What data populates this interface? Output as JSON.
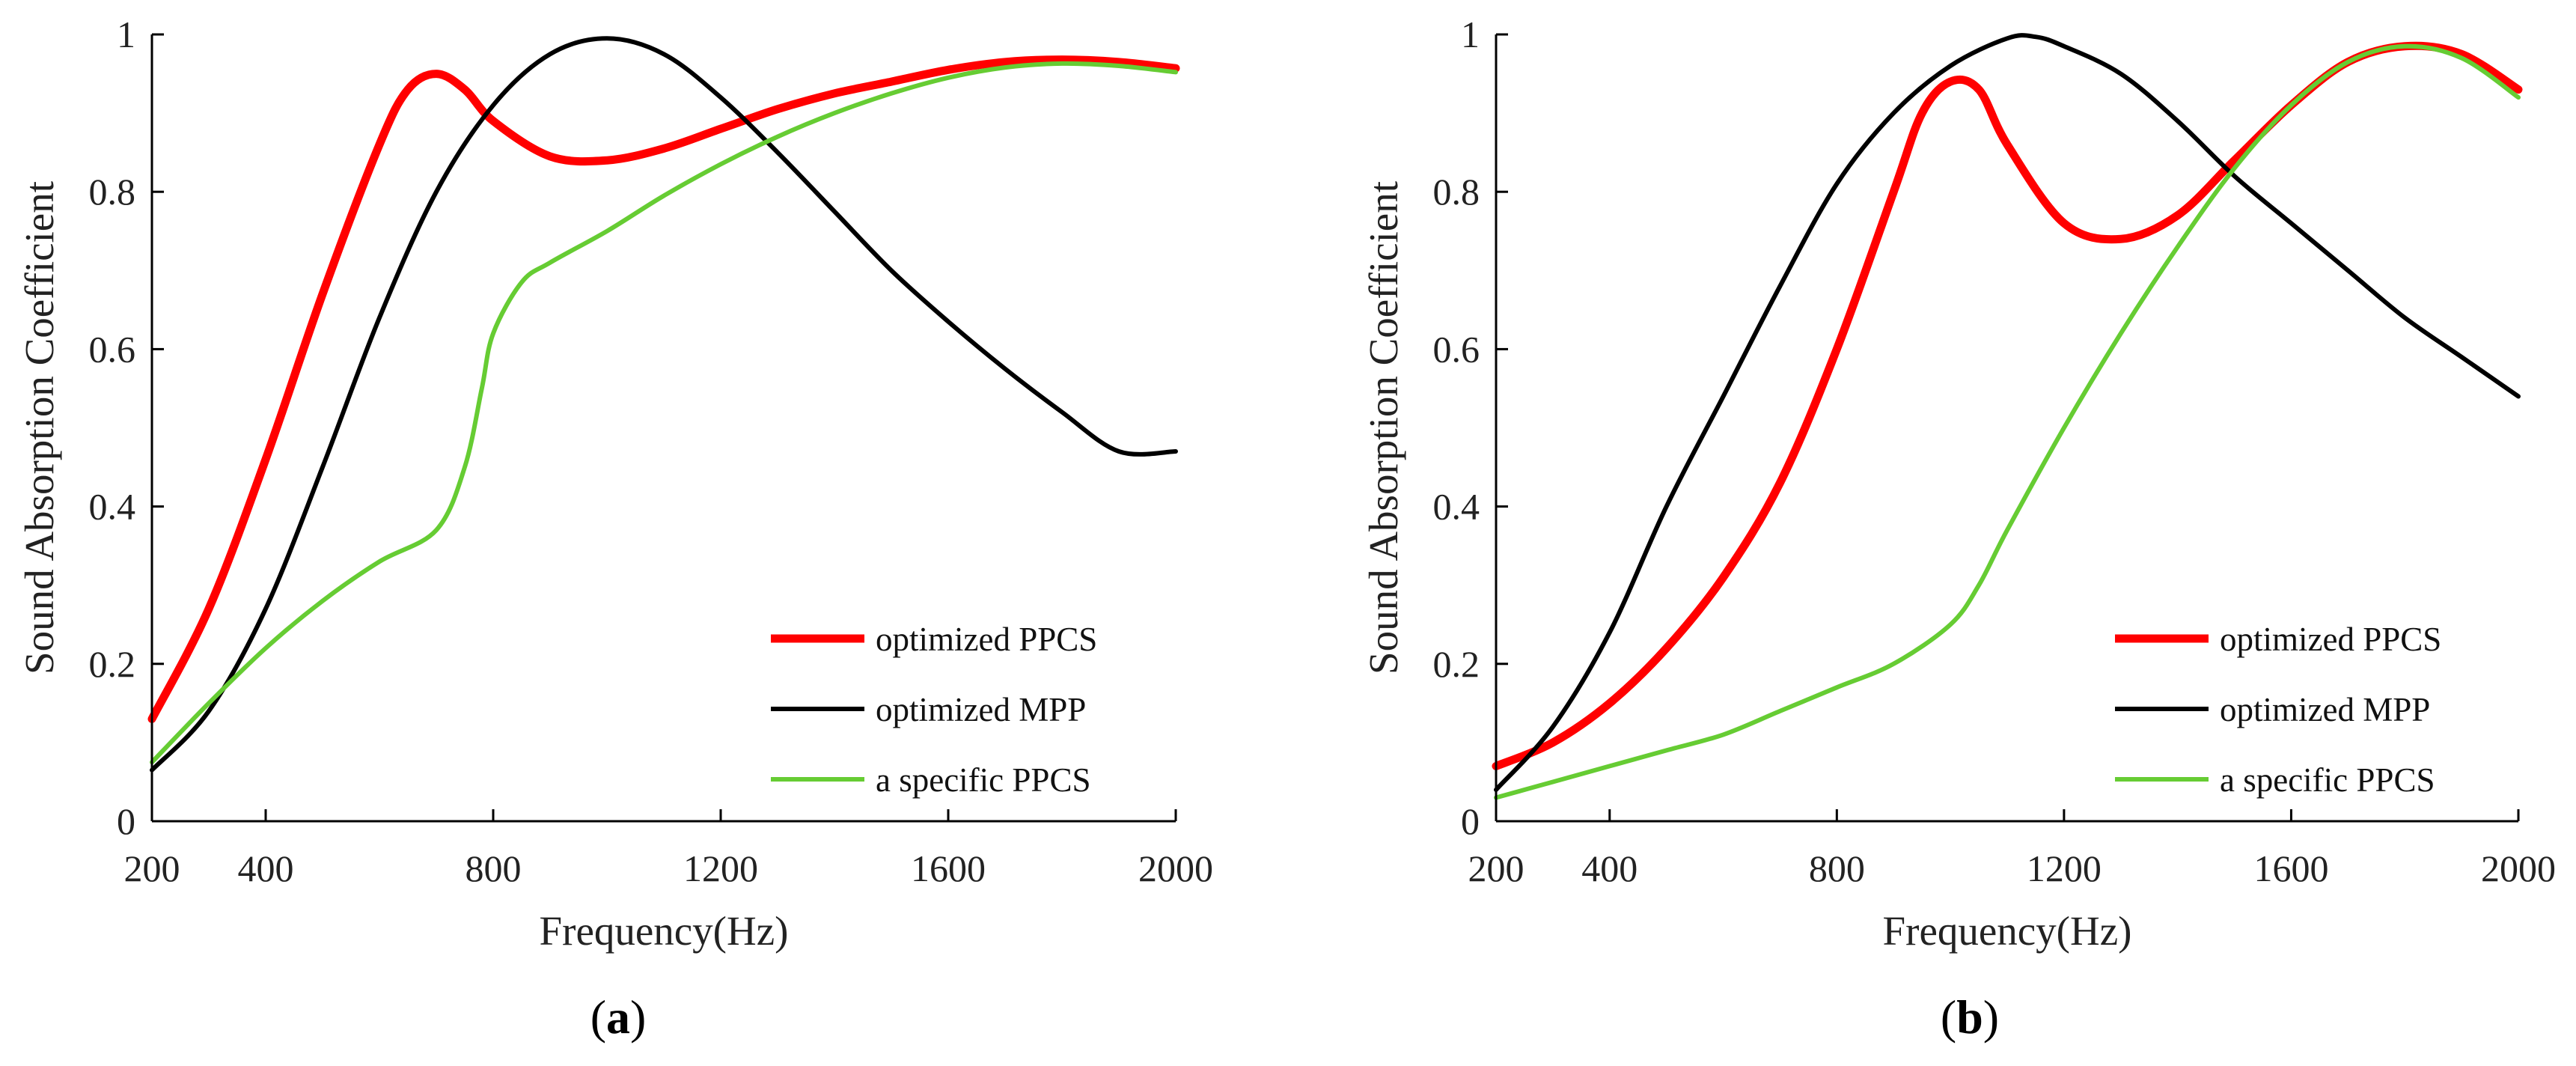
{
  "chart_data": [
    {
      "type": "line",
      "panel_label": "a",
      "xlabel": "Frequency(Hz)",
      "ylabel": "Sound Absorption Coefficient",
      "xlim": [
        200,
        2000
      ],
      "ylim": [
        0,
        1
      ],
      "x_ticks": [
        200,
        400,
        800,
        1200,
        1600,
        2000
      ],
      "y_ticks": [
        0,
        0.2,
        0.4,
        0.6,
        0.8,
        1
      ],
      "y_tick_labels": [
        "0",
        "0.2",
        "0.4",
        "0.6",
        "0.8",
        "1"
      ],
      "legend_position": "bottom-right",
      "series": [
        {
          "name": "optimized PPCS",
          "color": "#ff0000",
          "width": "thick",
          "points": [
            [
              200,
              0.13
            ],
            [
              300,
              0.27
            ],
            [
              400,
              0.46
            ],
            [
              500,
              0.67
            ],
            [
              600,
              0.86
            ],
            [
              650,
              0.93
            ],
            [
              700,
              0.95
            ],
            [
              750,
              0.93
            ],
            [
              800,
              0.89
            ],
            [
              900,
              0.845
            ],
            [
              1000,
              0.84
            ],
            [
              1100,
              0.855
            ],
            [
              1200,
              0.88
            ],
            [
              1300,
              0.905
            ],
            [
              1400,
              0.925
            ],
            [
              1500,
              0.94
            ],
            [
              1600,
              0.955
            ],
            [
              1700,
              0.965
            ],
            [
              1800,
              0.968
            ],
            [
              1900,
              0.965
            ],
            [
              2000,
              0.957
            ]
          ]
        },
        {
          "name": "optimized MPP",
          "color": "#000000",
          "width": "normal",
          "points": [
            [
              200,
              0.065
            ],
            [
              300,
              0.14
            ],
            [
              400,
              0.27
            ],
            [
              500,
              0.45
            ],
            [
              600,
              0.64
            ],
            [
              700,
              0.8
            ],
            [
              800,
              0.91
            ],
            [
              900,
              0.975
            ],
            [
              1000,
              0.995
            ],
            [
              1100,
              0.975
            ],
            [
              1200,
              0.92
            ],
            [
              1300,
              0.85
            ],
            [
              1400,
              0.775
            ],
            [
              1500,
              0.7
            ],
            [
              1600,
              0.635
            ],
            [
              1700,
              0.575
            ],
            [
              1800,
              0.52
            ],
            [
              1900,
              0.47
            ],
            [
              2000,
              0.47
            ]
          ]
        },
        {
          "name": "a specific PPCS",
          "color": "#66cc33",
          "width": "normal",
          "points": [
            [
              200,
              0.075
            ],
            [
              300,
              0.15
            ],
            [
              400,
              0.22
            ],
            [
              500,
              0.28
            ],
            [
              600,
              0.33
            ],
            [
              700,
              0.37
            ],
            [
              750,
              0.45
            ],
            [
              780,
              0.55
            ],
            [
              800,
              0.62
            ],
            [
              850,
              0.685
            ],
            [
              900,
              0.71
            ],
            [
              1000,
              0.75
            ],
            [
              1100,
              0.795
            ],
            [
              1200,
              0.835
            ],
            [
              1300,
              0.87
            ],
            [
              1400,
              0.9
            ],
            [
              1500,
              0.925
            ],
            [
              1600,
              0.945
            ],
            [
              1700,
              0.958
            ],
            [
              1800,
              0.963
            ],
            [
              1900,
              0.96
            ],
            [
              2000,
              0.952
            ]
          ]
        }
      ]
    },
    {
      "type": "line",
      "panel_label": "b",
      "xlabel": "Frequency(Hz)",
      "ylabel": "Sound Absorption Coefficient",
      "xlim": [
        200,
        2000
      ],
      "ylim": [
        0,
        1
      ],
      "x_ticks": [
        200,
        400,
        800,
        1200,
        1600,
        2000
      ],
      "y_ticks": [
        0,
        0.2,
        0.4,
        0.6,
        0.8,
        1
      ],
      "y_tick_labels": [
        "0",
        "0.2",
        "0.4",
        "0.6",
        "0.8",
        "1"
      ],
      "legend_position": "bottom-right",
      "series": [
        {
          "name": "optimized PPCS",
          "color": "#ff0000",
          "width": "thick",
          "points": [
            [
              200,
              0.07
            ],
            [
              300,
              0.1
            ],
            [
              400,
              0.15
            ],
            [
              500,
              0.22
            ],
            [
              600,
              0.31
            ],
            [
              700,
              0.43
            ],
            [
              800,
              0.6
            ],
            [
              900,
              0.8
            ],
            [
              950,
              0.9
            ],
            [
              1000,
              0.94
            ],
            [
              1050,
              0.93
            ],
            [
              1100,
              0.86
            ],
            [
              1200,
              0.76
            ],
            [
              1300,
              0.74
            ],
            [
              1400,
              0.77
            ],
            [
              1500,
              0.84
            ],
            [
              1600,
              0.91
            ],
            [
              1700,
              0.965
            ],
            [
              1800,
              0.985
            ],
            [
              1900,
              0.975
            ],
            [
              2000,
              0.93
            ]
          ]
        },
        {
          "name": "optimized MPP",
          "color": "#000000",
          "width": "normal",
          "points": [
            [
              200,
              0.04
            ],
            [
              300,
              0.12
            ],
            [
              400,
              0.24
            ],
            [
              500,
              0.4
            ],
            [
              600,
              0.54
            ],
            [
              700,
              0.68
            ],
            [
              800,
              0.81
            ],
            [
              900,
              0.9
            ],
            [
              1000,
              0.96
            ],
            [
              1100,
              0.995
            ],
            [
              1150,
              0.997
            ],
            [
              1200,
              0.985
            ],
            [
              1300,
              0.95
            ],
            [
              1400,
              0.89
            ],
            [
              1500,
              0.82
            ],
            [
              1600,
              0.76
            ],
            [
              1700,
              0.7
            ],
            [
              1800,
              0.64
            ],
            [
              1900,
              0.59
            ],
            [
              2000,
              0.54
            ]
          ]
        },
        {
          "name": "a specific PPCS",
          "color": "#66cc33",
          "width": "normal",
          "points": [
            [
              200,
              0.03
            ],
            [
              300,
              0.05
            ],
            [
              400,
              0.07
            ],
            [
              500,
              0.09
            ],
            [
              600,
              0.11
            ],
            [
              700,
              0.14
            ],
            [
              800,
              0.17
            ],
            [
              900,
              0.2
            ],
            [
              1000,
              0.25
            ],
            [
              1050,
              0.3
            ],
            [
              1100,
              0.37
            ],
            [
              1200,
              0.5
            ],
            [
              1300,
              0.62
            ],
            [
              1400,
              0.73
            ],
            [
              1500,
              0.83
            ],
            [
              1600,
              0.91
            ],
            [
              1700,
              0.965
            ],
            [
              1800,
              0.985
            ],
            [
              1900,
              0.97
            ],
            [
              2000,
              0.92
            ]
          ]
        }
      ]
    }
  ]
}
